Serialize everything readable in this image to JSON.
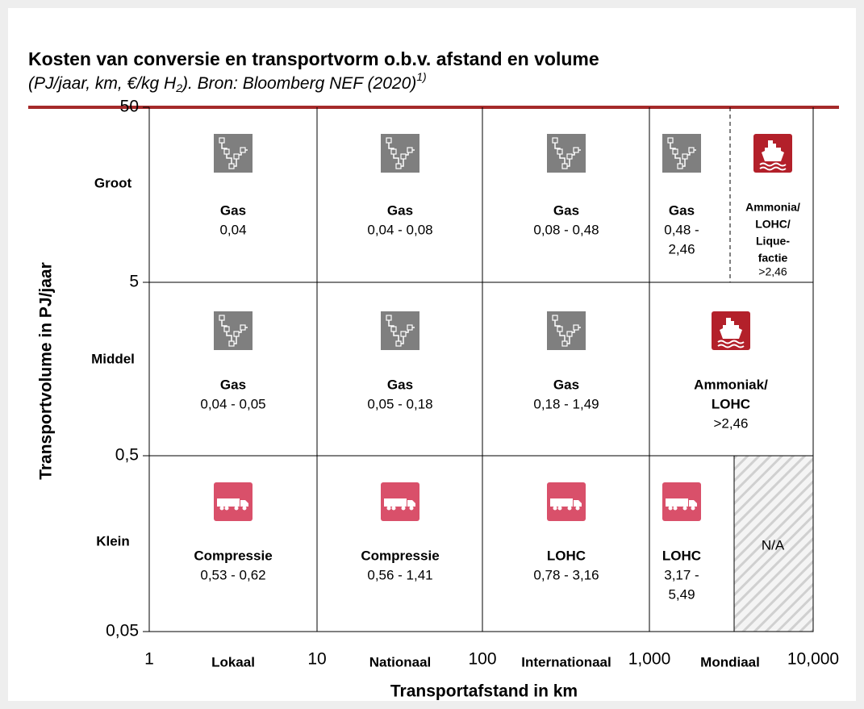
{
  "header": {
    "title": "Kosten van conversie en transportvorm o.b.v. afstand en volume",
    "subtitle": [
      "(PJ/jaar, km, €/kg H",
      "2",
      "). Bron: Bloomberg NEF (2020)",
      "1)"
    ]
  },
  "y_axis": {
    "label": "Transportvolume in PJ/jaar",
    "ticks": [
      "50",
      "5",
      "0,5",
      "0,05"
    ],
    "rows": [
      "Groot",
      "Middel",
      "Klein"
    ]
  },
  "x_axis": {
    "label": "Transportafstand in km",
    "ticks": [
      "1",
      "10",
      "100",
      "1,000",
      "10,000"
    ],
    "columns": [
      "Lokaal",
      "Nationaal",
      "Internationaal",
      "Mondiaal"
    ]
  },
  "cells": [
    [
      {
        "icon": "pipe",
        "label": [
          "Gas"
        ],
        "value": [
          "0,04"
        ]
      },
      {
        "icon": "pipe",
        "label": [
          "Gas"
        ],
        "value": [
          "0,04 - 0,08"
        ]
      },
      {
        "icon": "pipe",
        "label": [
          "Gas"
        ],
        "value": [
          "0,08 - 0,48"
        ]
      },
      {
        "icon": "pipe",
        "label": [
          "Gas"
        ],
        "value": [
          "0,48 -",
          "2,46"
        ]
      },
      {
        "icon": "ship",
        "label": [
          "Ammonia/",
          "LOHC/",
          "Lique-",
          "factie"
        ],
        "value": [
          ">2,46"
        ]
      }
    ],
    [
      {
        "icon": "pipe",
        "label": [
          "Gas"
        ],
        "value": [
          "0,04 - 0,05"
        ]
      },
      {
        "icon": "pipe",
        "label": [
          "Gas"
        ],
        "value": [
          "0,05 - 0,18"
        ]
      },
      {
        "icon": "pipe",
        "label": [
          "Gas"
        ],
        "value": [
          "0,18 - 1,49"
        ]
      },
      {
        "icon": "ship",
        "label": [
          "Ammoniak/",
          "LOHC"
        ],
        "value": [
          ">2,46"
        ]
      }
    ],
    [
      {
        "icon": "truck",
        "label": [
          "Compressie"
        ],
        "value": [
          "0,53 - 0,62"
        ]
      },
      {
        "icon": "truck",
        "label": [
          "Compressie"
        ],
        "value": [
          "0,56 - 1,41"
        ]
      },
      {
        "icon": "truck",
        "label": [
          "LOHC"
        ],
        "value": [
          "0,78 - 3,16"
        ]
      },
      {
        "icon": "truck",
        "label": [
          "LOHC"
        ],
        "value": [
          "3,17 -",
          "5,49"
        ]
      },
      {
        "icon": "none",
        "label": [
          "N/A"
        ],
        "value": []
      }
    ]
  ]
}
